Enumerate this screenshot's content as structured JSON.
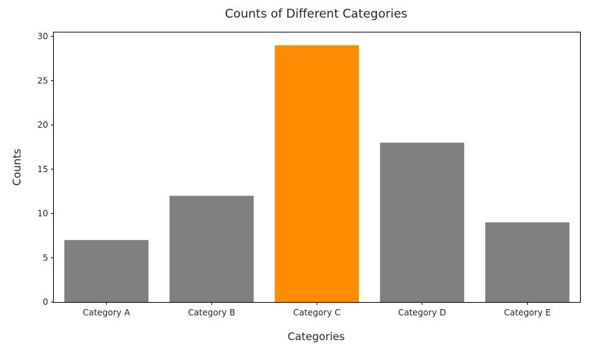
{
  "chart_data": {
    "type": "bar",
    "title": "Counts of Different Categories",
    "xlabel": "Categories",
    "ylabel": "Counts",
    "categories": [
      "Category A",
      "Category B",
      "Category C",
      "Category D",
      "Category E"
    ],
    "values": [
      7,
      12,
      29,
      18,
      9
    ],
    "colors": [
      "#808080",
      "#808080",
      "#ff8c00",
      "#808080",
      "#808080"
    ],
    "ylim": [
      0,
      30.45
    ],
    "yticks": [
      0,
      5,
      10,
      15,
      20,
      25,
      30
    ],
    "grid": false,
    "legend": "none"
  }
}
